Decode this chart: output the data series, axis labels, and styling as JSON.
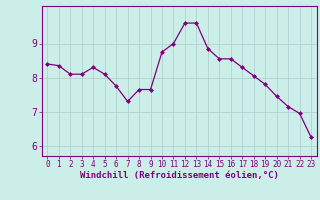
{
  "x": [
    0,
    1,
    2,
    3,
    4,
    5,
    6,
    7,
    8,
    9,
    10,
    11,
    12,
    13,
    14,
    15,
    16,
    17,
    18,
    19,
    20,
    21,
    22,
    23
  ],
  "y": [
    8.4,
    8.35,
    8.1,
    8.1,
    8.3,
    8.1,
    7.75,
    7.3,
    7.65,
    7.65,
    8.75,
    9.0,
    9.6,
    9.6,
    8.85,
    8.55,
    8.55,
    8.3,
    8.05,
    7.8,
    7.45,
    7.15,
    6.95,
    6.25
  ],
  "line_color": "#800080",
  "marker": "D",
  "marker_size": 2.0,
  "bg_color": "#cceee8",
  "grid_color": "#aacccc",
  "xlabel": "Windchill (Refroidissement éolien,°C)",
  "xlim": [
    -0.5,
    23.5
  ],
  "ylim": [
    5.7,
    10.1
  ],
  "yticks": [
    6,
    7,
    8,
    9
  ],
  "xticks": [
    0,
    1,
    2,
    3,
    4,
    5,
    6,
    7,
    8,
    9,
    10,
    11,
    12,
    13,
    14,
    15,
    16,
    17,
    18,
    19,
    20,
    21,
    22,
    23
  ],
  "tick_color": "#800080",
  "label_color": "#800080",
  "axis_color": "#800080",
  "tick_fontsize": 5.5,
  "ylabel_fontsize": 7,
  "xlabel_fontsize": 6.5
}
